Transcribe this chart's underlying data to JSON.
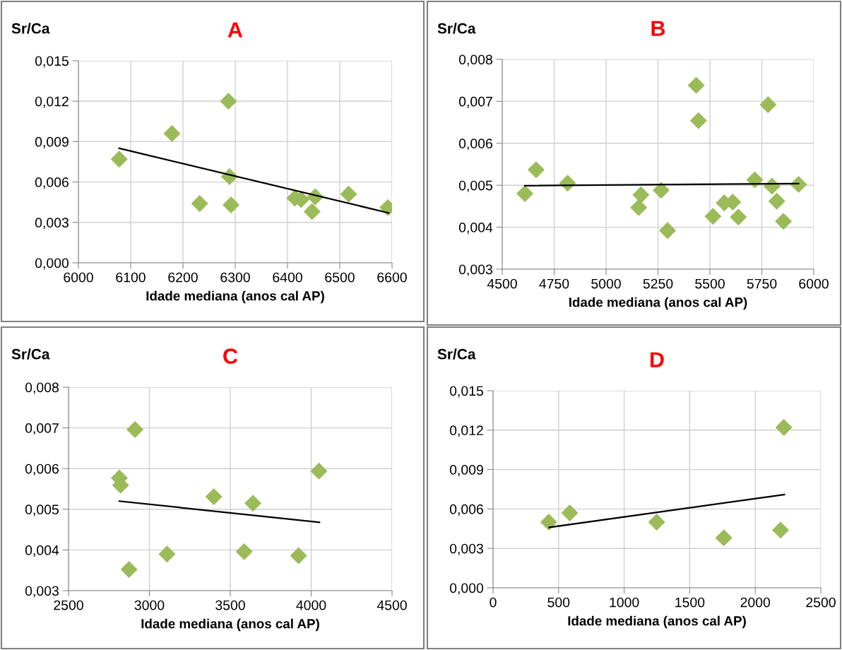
{
  "chart_data": [
    {
      "type": "scatter",
      "title": "A",
      "ylabel": "Sr/Ca",
      "xlabel": "Idade mediana (anos cal AP)",
      "marker": "diamond",
      "grid": true,
      "legend": false,
      "xlim": [
        6000,
        6600
      ],
      "xticks": [
        6000,
        6100,
        6200,
        6300,
        6400,
        6500,
        6600
      ],
      "ylim": [
        0,
        0.015
      ],
      "yticks": [
        {
          "value": 0,
          "label": "0,000"
        },
        {
          "value": 0.003,
          "label": "0,003"
        },
        {
          "value": 0.006,
          "label": "0,006"
        },
        {
          "value": 0.009,
          "label": "0,009"
        },
        {
          "value": 0.012,
          "label": "0,012"
        },
        {
          "value": 0.015,
          "label": "0,015"
        }
      ],
      "series": [
        {
          "color": "#9bbb59",
          "x": [
            6078,
            6179,
            6287,
            6289,
            6232,
            6292,
            6414,
            6426,
            6453,
            6447,
            6517,
            6592
          ],
          "values": [
            0.0077,
            0.0096,
            0.012,
            0.0064,
            0.0044,
            0.0043,
            0.0048,
            0.0047,
            0.0049,
            0.0038,
            0.0051,
            0.0041
          ]
        },
        {
          "type": "line",
          "marker": "none",
          "color": "#000000",
          "x": [
            6078,
            6594
          ],
          "values": [
            0.0085,
            0.0037
          ]
        }
      ]
    },
    {
      "type": "scatter",
      "title": "B",
      "ylabel": "Sr/Ca",
      "xlabel": "Idade mediana (anos cal AP)",
      "marker": "diamond",
      "grid": true,
      "legend": false,
      "xlim": [
        4500,
        6000
      ],
      "xticks": [
        4500,
        4750,
        5000,
        5250,
        5500,
        5750,
        6000
      ],
      "ylim": [
        0.003,
        0.008
      ],
      "yticks": [
        {
          "value": 0.003,
          "label": "0,003"
        },
        {
          "value": 0.004,
          "label": "0,004"
        },
        {
          "value": 0.005,
          "label": "0,005"
        },
        {
          "value": 0.006,
          "label": "0,006"
        },
        {
          "value": 0.007,
          "label": "0,007"
        },
        {
          "value": 0.008,
          "label": "0,008"
        }
      ],
      "series": [
        {
          "color": "#9bbb59",
          "x": [
            4609,
            4663,
            4815,
            5168,
            5157,
            5265,
            5296,
            5434,
            5445,
            5515,
            5569,
            5610,
            5637,
            5716,
            5780,
            5799,
            5822,
            5854,
            5927
          ],
          "values": [
            0.0048,
            0.00537,
            0.00505,
            0.00477,
            0.00447,
            0.00488,
            0.00392,
            0.00738,
            0.00654,
            0.00426,
            0.00458,
            0.0046,
            0.00424,
            0.00513,
            0.00692,
            0.00498,
            0.00462,
            0.00414,
            0.00502
          ]
        },
        {
          "type": "line",
          "marker": "none",
          "color": "#000000",
          "x": [
            4609,
            5927
          ],
          "values": [
            0.00499,
            0.00504
          ]
        }
      ]
    },
    {
      "type": "scatter",
      "title": "C",
      "ylabel": "Sr/Ca",
      "xlabel": "Idade mediana (anos cal AP)",
      "marker": "diamond",
      "grid": true,
      "legend": false,
      "xlim": [
        2500,
        4500
      ],
      "xticks": [
        2500,
        3000,
        3500,
        4000,
        4500
      ],
      "ylim": [
        0.003,
        0.008
      ],
      "yticks": [
        {
          "value": 0.003,
          "label": "0,003"
        },
        {
          "value": 0.004,
          "label": "0,004"
        },
        {
          "value": 0.005,
          "label": "0,005"
        },
        {
          "value": 0.006,
          "label": "0,006"
        },
        {
          "value": 0.007,
          "label": "0,007"
        },
        {
          "value": 0.008,
          "label": "0,008"
        }
      ],
      "series": [
        {
          "color": "#9bbb59",
          "x": [
            2814,
            2822,
            2911,
            2874,
            3109,
            3398,
            3640,
            3586,
            3922,
            4048
          ],
          "values": [
            0.00577,
            0.00559,
            0.00696,
            0.00352,
            0.0039,
            0.00531,
            0.00515,
            0.00396,
            0.00386,
            0.00594
          ]
        },
        {
          "type": "line",
          "marker": "none",
          "color": "#000000",
          "x": [
            2814,
            4051
          ],
          "values": [
            0.0052,
            0.00468
          ]
        }
      ]
    },
    {
      "type": "scatter",
      "title": "D",
      "ylabel": "Sr/Ca",
      "xlabel": "Idade mediana (anos cal AP)",
      "marker": "diamond",
      "grid": true,
      "legend": false,
      "xlim": [
        0,
        2500
      ],
      "xticks": [
        0,
        500,
        1000,
        1500,
        2000,
        2500
      ],
      "ylim": [
        0,
        0.015
      ],
      "yticks": [
        {
          "value": 0,
          "label": "0,000"
        },
        {
          "value": 0.003,
          "label": "0,003"
        },
        {
          "value": 0.006,
          "label": "0,006"
        },
        {
          "value": 0.009,
          "label": "0,009"
        },
        {
          "value": 0.012,
          "label": "0,012"
        },
        {
          "value": 0.015,
          "label": "0,015"
        }
      ],
      "series": [
        {
          "color": "#9bbb59",
          "x": [
            425,
            585,
            1248,
            1760,
            2193,
            2218
          ],
          "values": [
            0.005,
            0.0057,
            0.005,
            0.0038,
            0.0044,
            0.0122
          ]
        },
        {
          "type": "line",
          "marker": "none",
          "color": "#000000",
          "x": [
            429,
            2222
          ],
          "values": [
            0.0046,
            0.0071
          ]
        }
      ]
    }
  ]
}
